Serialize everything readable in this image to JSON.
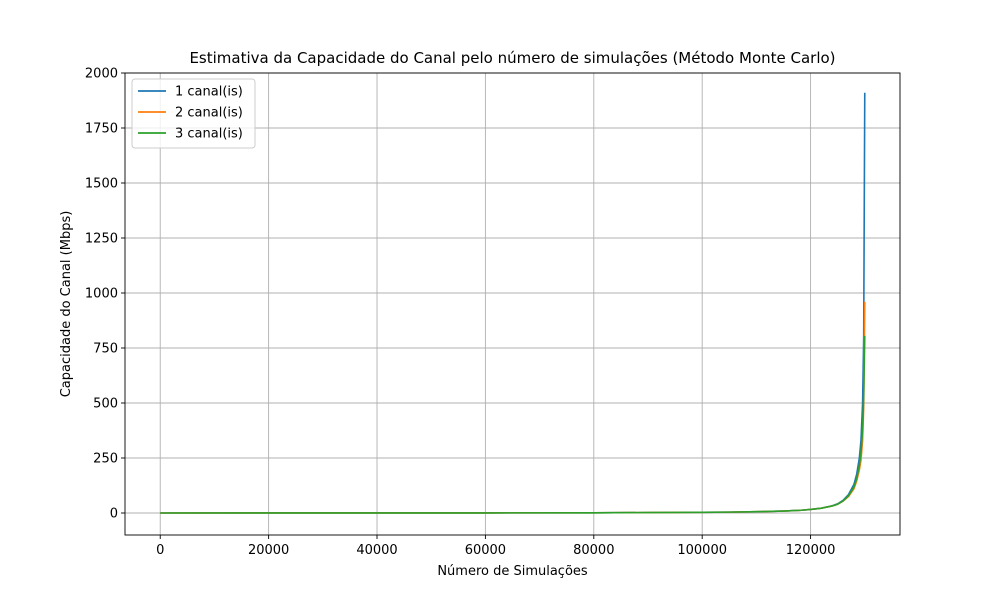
{
  "chart_data": {
    "type": "line",
    "title": "Estimativa da Capacidade do Canal pelo número de simulações (Método Monte Carlo)",
    "xlabel": "Número de Simulações",
    "ylabel": "Capacidade do Canal (Mbps)",
    "xlim": [
      -6500,
      136500
    ],
    "ylim": [
      -100,
      2000
    ],
    "xticks": [
      0,
      20000,
      40000,
      60000,
      80000,
      100000,
      120000
    ],
    "xtick_labels": [
      "0",
      "20000",
      "40000",
      "60000",
      "80000",
      "100000",
      "120000"
    ],
    "yticks": [
      0,
      250,
      500,
      750,
      1000,
      1250,
      1500,
      1750,
      2000
    ],
    "ytick_labels": [
      "0",
      "250",
      "500",
      "750",
      "1000",
      "1250",
      "1500",
      "1750",
      "2000"
    ],
    "grid": true,
    "legend_position": "top-left",
    "x": [
      0,
      20000,
      40000,
      60000,
      80000,
      90000,
      100000,
      105000,
      110000,
      115000,
      118000,
      120000,
      122000,
      124000,
      125000,
      126000,
      127000,
      128000,
      128500,
      129000,
      129300,
      129600,
      129800,
      130000
    ],
    "series": [
      {
        "name": "1 canal(is)",
        "color": "#1f77b4",
        "values": [
          0,
          0.1,
          0.2,
          0.5,
          1,
          2,
          3,
          4,
          6,
          9,
          12,
          16,
          22,
          33,
          42,
          58,
          84,
          130,
          175,
          250,
          330,
          500,
          800,
          1910
        ]
      },
      {
        "name": "2 canal(is)",
        "color": "#ff7f0e",
        "values": [
          0,
          0.1,
          0.2,
          0.5,
          1,
          2,
          3,
          4,
          6,
          9,
          12,
          16,
          22,
          32,
          40,
          54,
          75,
          110,
          145,
          195,
          240,
          330,
          480,
          960
        ]
      },
      {
        "name": "3 canal(is)",
        "color": "#2ca02c",
        "values": [
          0,
          0.1,
          0.2,
          0.5,
          1,
          2,
          3,
          4,
          6,
          9,
          12,
          16,
          22,
          32,
          40,
          55,
          78,
          118,
          155,
          215,
          275,
          380,
          530,
          805
        ]
      }
    ]
  }
}
